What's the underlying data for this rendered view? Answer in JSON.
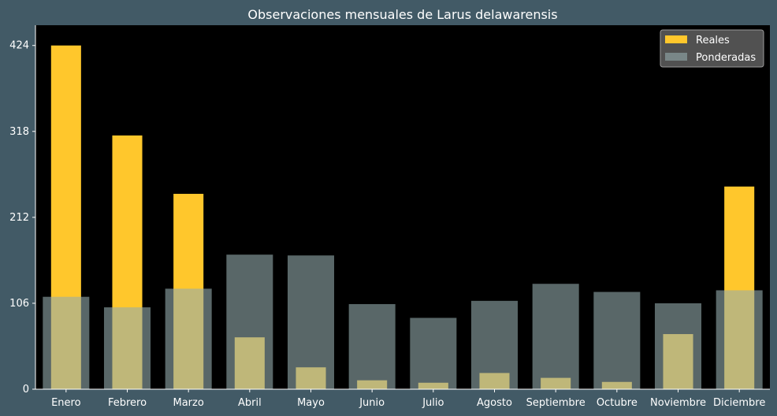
{
  "chart_data": {
    "type": "bar",
    "title": "Observaciones mensuales de Larus delawarensis",
    "xlabel": "",
    "ylabel": "",
    "categories": [
      "Enero",
      "Febrero",
      "Marzo",
      "Abril",
      "Mayo",
      "Junio",
      "Julio",
      "Agosto",
      "Septiembre",
      "Octubre",
      "Noviembre",
      "Diciembre"
    ],
    "series": [
      {
        "name": "Reales",
        "color": "#ffc72c",
        "values": [
          424,
          313,
          241,
          64,
          27,
          11,
          8,
          20,
          14,
          9,
          68,
          250
        ]
      },
      {
        "name": "Ponderadas",
        "color": "#94abad",
        "values": [
          114,
          101,
          124,
          166,
          165,
          105,
          88,
          109,
          130,
          120,
          106,
          122
        ]
      }
    ],
    "ylim": [
      0,
      449
    ],
    "yticks": [
      0,
      106,
      212,
      318,
      424
    ],
    "grid": false,
    "legend_position": "top-right",
    "plot_background": "#000000",
    "figure_background": "#425a66"
  }
}
